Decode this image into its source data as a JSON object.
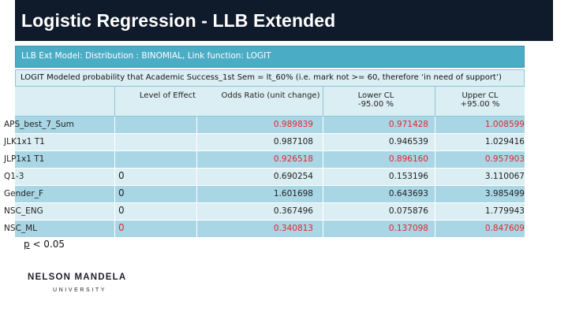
{
  "title": "Logistic Regression - LLB Extended",
  "model_header": "LLB Ext Model: Distribution : BINOMIAL, Link function: LOGIT",
  "subtitle": "LOGIT Modeled probability that Academic Success_1st Sem = lt_60% (i.e. mark not >= 60, therefore ‘in need of support’)",
  "table": {
    "headers": {
      "label": "",
      "level": "Level of Effect",
      "odds": "Odds Ratio (unit change)",
      "lower_line1": "Lower CL",
      "lower_line2": "-95.00 %",
      "upper_line1": "Upper CL",
      "upper_line2": "+95.00 %"
    },
    "rows": [
      {
        "label": "APS_best_7_Sum",
        "level": "",
        "odds": "0.989839",
        "lower": "0.971428",
        "upper": "1.008599"
      },
      {
        "label": "JLK1x1 T1",
        "level": "",
        "odds": "0.987108",
        "lower": "0.946539",
        "upper": "1.029416"
      },
      {
        "label": "JLP1x1 T1",
        "level": "",
        "odds": "0.926518",
        "lower": "0.896160",
        "upper": "0.957903"
      },
      {
        "label": "Q1-3",
        "level": "0",
        "odds": "0.690254",
        "lower": "0.153196",
        "upper": "3.110067"
      },
      {
        "label": "Gender_F",
        "level": "0",
        "odds": "1.601698",
        "lower": "0.643693",
        "upper": "3.985499"
      },
      {
        "label": "NSC_ENG",
        "level": "0",
        "odds": "0.367496",
        "lower": "0.075876",
        "upper": "1.779943"
      },
      {
        "label": "NSC_ML",
        "level": "0",
        "odds": "0.340813",
        "lower": "0.137098",
        "upper": "0.847609"
      }
    ]
  },
  "p_note": {
    "p": "p",
    "rest": " < 0.05"
  },
  "logo": {
    "main": "NELSON MANDELA",
    "sub": "UNIVERSITY"
  },
  "colors": {
    "title_bg": "#0f1b2b",
    "header_bg": "#4bacc6",
    "row_dark": "#a9d6e5",
    "row_light": "#dbeef4",
    "significant": "#e1262f"
  }
}
